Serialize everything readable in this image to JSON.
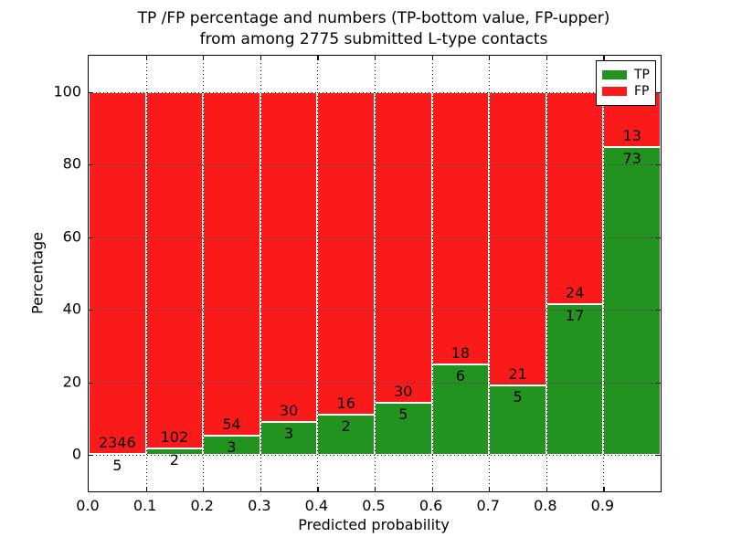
{
  "title": {
    "line1": "TP /FP percentage and numbers (TP-bottom value, FP-upper)",
    "line2": "from among 2775 submitted L-type contacts"
  },
  "axes": {
    "xlabel": "Predicted probability",
    "ylabel": "Percentage",
    "xtick_labels": [
      "0.0",
      "0.1",
      "0.2",
      "0.3",
      "0.4",
      "0.5",
      "0.6",
      "0.7",
      "0.8",
      "0.9"
    ],
    "ytick_labels": [
      "0",
      "20",
      "40",
      "60",
      "80",
      "100"
    ],
    "ytick_values": [
      0,
      20,
      40,
      60,
      80,
      100
    ],
    "xlim": [
      0.0,
      1.0
    ],
    "ylim": [
      -10,
      110
    ],
    "grid": "dotted"
  },
  "legend": {
    "position": "upper-right",
    "items": [
      {
        "label": "TP",
        "color": "#22931e"
      },
      {
        "label": "FP",
        "color": "#fa1a1a"
      }
    ]
  },
  "colors": {
    "tp_green": "#22931e",
    "fp_red": "#fa1a1a",
    "bar_edge": "#ffffff",
    "text": "#000000",
    "background": "#ffffff"
  },
  "chart_data": {
    "type": "bar",
    "stacked": true,
    "normalized": "each bar totals 100%",
    "title": "TP /FP percentage and numbers (TP-bottom value, FP-upper) from among 2775 submitted L-type contacts",
    "xlabel": "Predicted probability",
    "ylabel": "Percentage",
    "total_contacts": 2775,
    "categories": [
      "0.0-0.1",
      "0.1-0.2",
      "0.2-0.3",
      "0.3-0.4",
      "0.4-0.5",
      "0.5-0.6",
      "0.6-0.7",
      "0.7-0.8",
      "0.8-0.9",
      "0.9-1.0"
    ],
    "bin_edges": [
      0.0,
      0.1,
      0.2,
      0.3,
      0.4,
      0.5,
      0.6,
      0.7,
      0.8,
      0.9,
      1.0
    ],
    "series": [
      {
        "name": "TP",
        "color": "#22931e",
        "counts": [
          5,
          2,
          3,
          3,
          2,
          5,
          6,
          5,
          17,
          73
        ]
      },
      {
        "name": "FP",
        "color": "#fa1a1a",
        "counts": [
          2346,
          102,
          54,
          30,
          16,
          30,
          18,
          21,
          24,
          13
        ]
      }
    ],
    "tp_percent": [
      0.21,
      1.92,
      5.26,
      9.09,
      11.11,
      14.29,
      25.0,
      19.23,
      41.46,
      84.88
    ],
    "fp_percent": [
      99.79,
      98.08,
      94.74,
      90.91,
      88.89,
      85.71,
      75.0,
      80.77,
      58.54,
      15.12
    ],
    "annotation_rule": "FP count printed above TP/FP boundary, TP count printed below it"
  }
}
